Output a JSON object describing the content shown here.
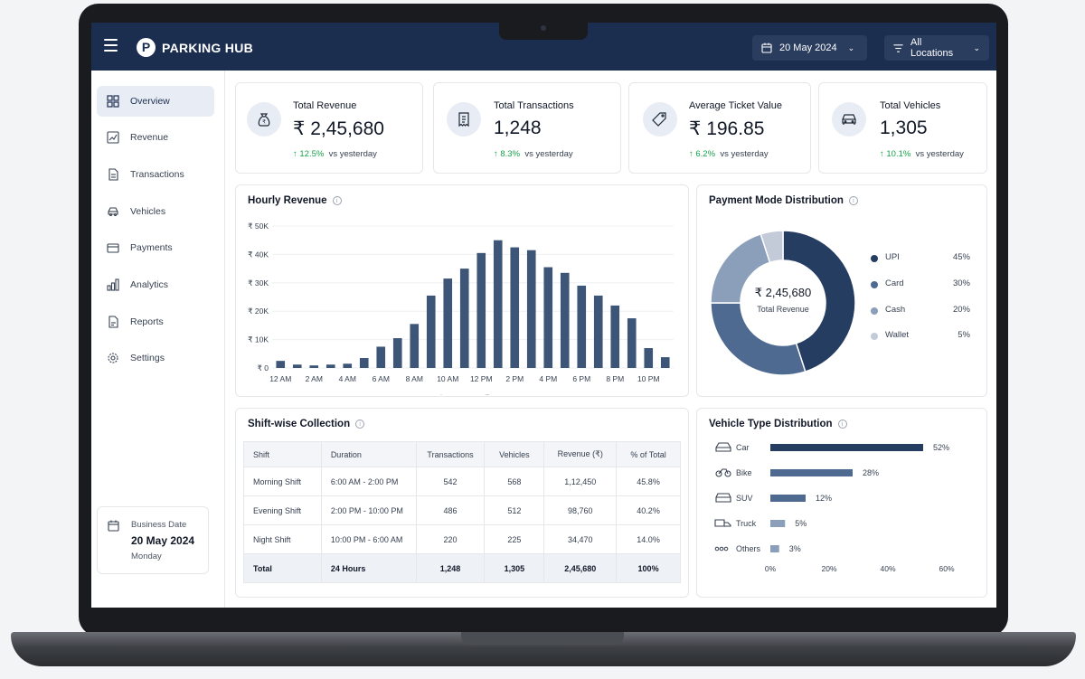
{
  "header": {
    "brand_letter": "P",
    "brand": "PARKING HUB",
    "date": "20 May 2024",
    "location": "All Locations"
  },
  "sidebar": {
    "items": [
      {
        "label": "Overview",
        "icon": "grid-icon",
        "active": true
      },
      {
        "label": "Revenue",
        "icon": "line-chart-icon"
      },
      {
        "label": "Transactions",
        "icon": "document-icon"
      },
      {
        "label": "Vehicles",
        "icon": "car-icon"
      },
      {
        "label": "Payments",
        "icon": "credit-card-icon"
      },
      {
        "label": "Analytics",
        "icon": "bar-chart-icon"
      },
      {
        "label": "Reports",
        "icon": "report-icon"
      },
      {
        "label": "Settings",
        "icon": "gear-icon"
      }
    ],
    "business_date": {
      "label": "Business Date",
      "date": "20 May 2024",
      "day": "Monday"
    }
  },
  "kpis": [
    {
      "label": "Total Revenue",
      "value": "₹ 2,45,680",
      "change": "↑ 12.5%",
      "suffix": "vs yesterday",
      "icon": "money-bag-icon"
    },
    {
      "label": "Total Transactions",
      "value": "1,248",
      "change": "↑ 8.3%",
      "suffix": "vs yesterday",
      "icon": "receipt-icon"
    },
    {
      "label": "Average Ticket Value",
      "value": "₹ 196.85",
      "change": "↑ 6.2%",
      "suffix": "vs yesterday",
      "icon": "tag-icon"
    },
    {
      "label": "Total Vehicles",
      "value": "1,305",
      "change": "↑ 10.1%",
      "suffix": "vs yesterday",
      "icon": "car-icon"
    }
  ],
  "hourly": {
    "title": "Hourly Revenue",
    "info": "i"
  },
  "payment": {
    "title": "Payment Mode Distribution",
    "center_value": "₹ 2,45,680",
    "center_label": "Total Revenue",
    "info": "i"
  },
  "shift": {
    "title": "Shift-wise Collection",
    "info": "i",
    "columns": [
      "Shift",
      "Duration",
      "Transactions",
      "Vehicles",
      "Revenue (₹)",
      "% of Total"
    ],
    "rows": [
      [
        "Morning Shift",
        "6:00 AM - 2:00 PM",
        "542",
        "568",
        "1,12,450",
        "45.8%"
      ],
      [
        "Evening Shift",
        "2:00 PM - 10:00 PM",
        "486",
        "512",
        "98,760",
        "40.2%"
      ],
      [
        "Night Shift",
        "10:00 PM - 6:00 AM",
        "220",
        "225",
        "34,470",
        "14.0%"
      ]
    ],
    "total": [
      "Total",
      "24 Hours",
      "1,248",
      "1,305",
      "2,45,680",
      "100%"
    ]
  },
  "vehicle": {
    "title": "Vehicle Type Distribution",
    "info": "i"
  },
  "colors": {
    "navy": "#1c2e4f",
    "bar": "#3d5678",
    "green": "#16a34a"
  },
  "chart_data": [
    {
      "type": "bar",
      "title": "Hourly Revenue",
      "ylim": [
        0,
        50000
      ],
      "y_ticks": [
        "₹ 50K",
        "₹ 40K",
        "₹ 30K",
        "₹ 20K",
        "₹ 10K",
        "₹ 0"
      ],
      "x_tick_labels": [
        "12 AM",
        "2 AM",
        "4 AM",
        "6 AM",
        "8 AM",
        "10 AM",
        "12 PM",
        "2 PM",
        "4 PM",
        "6 PM",
        "8 PM",
        "10 PM"
      ],
      "hours": [
        "12 AM",
        "1 AM",
        "2 AM",
        "3 AM",
        "4 AM",
        "5 AM",
        "6 AM",
        "7 AM",
        "8 AM",
        "9 AM",
        "10 AM",
        "11 AM",
        "12 PM",
        "1 PM",
        "2 PM",
        "3 PM",
        "4 PM",
        "5 PM",
        "6 PM",
        "7 PM",
        "8 PM",
        "9 PM",
        "10 PM",
        "11 PM"
      ],
      "series": [
        {
          "name": "Revenue (₹)",
          "values": [
            2500,
            1200,
            900,
            1200,
            1500,
            3500,
            7500,
            10500,
            15500,
            25500,
            31500,
            35000,
            40500,
            45000,
            42500,
            41500,
            35500,
            33500,
            29000,
            25500,
            22000,
            17500,
            7000,
            3800
          ]
        }
      ],
      "legend": "bottom"
    },
    {
      "type": "pie",
      "title": "Payment Mode Distribution",
      "labels": [
        "UPI",
        "Card",
        "Cash",
        "Wallet"
      ],
      "values": [
        45,
        30,
        20,
        5
      ],
      "value_labels": [
        "45%",
        "30%",
        "20%",
        "5%"
      ],
      "colors": [
        "#263d62",
        "#4f6a90",
        "#8c9fba",
        "#c3cbd8"
      ]
    },
    {
      "type": "bar",
      "orientation": "horizontal",
      "title": "Vehicle Type Distribution",
      "categories": [
        "Car",
        "Bike",
        "SUV",
        "Truck",
        "Others"
      ],
      "values": [
        52,
        28,
        12,
        5,
        3
      ],
      "value_labels": [
        "52%",
        "28%",
        "12%",
        "5%",
        "3%"
      ],
      "xlim": [
        0,
        60
      ],
      "x_ticks": [
        "0%",
        "20%",
        "40%",
        "60%"
      ],
      "colors": [
        "#263d62",
        "#4f6a90",
        "#4f6a90",
        "#8c9fba",
        "#8c9fba"
      ]
    }
  ]
}
